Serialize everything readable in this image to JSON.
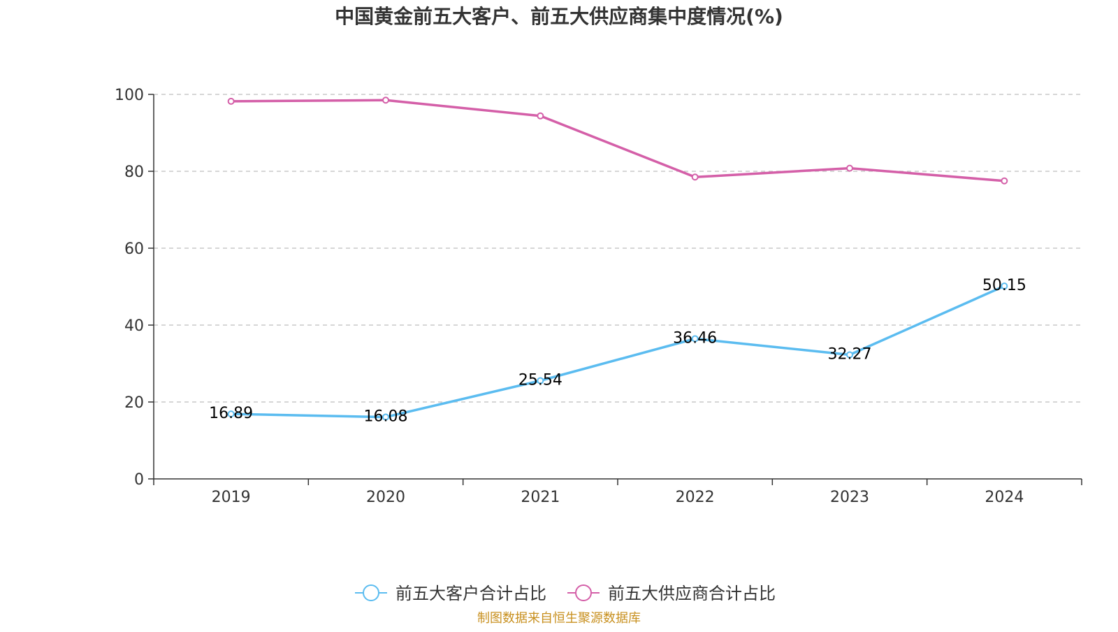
{
  "chart_data": {
    "type": "line",
    "title": "中国黄金前五大客户、前五大供应商集中度情况(%)",
    "categories": [
      "2019",
      "2020",
      "2021",
      "2022",
      "2023",
      "2024"
    ],
    "ylim": [
      0,
      100
    ],
    "yticks": [
      0,
      20,
      40,
      60,
      80,
      100
    ],
    "grid": true,
    "legend_position": "bottom",
    "series": [
      {
        "name": "前五大客户合计占比",
        "color": "#5bbcf0",
        "values": [
          16.89,
          16.08,
          25.54,
          36.46,
          32.27,
          50.15
        ],
        "show_labels": true
      },
      {
        "name": "前五大供应商合计占比",
        "color": "#d45fa8",
        "values": [
          98.2,
          98.5,
          94.4,
          78.5,
          80.8,
          77.5
        ],
        "show_labels": false
      }
    ]
  },
  "source": "制图数据来自恒生聚源数据库"
}
